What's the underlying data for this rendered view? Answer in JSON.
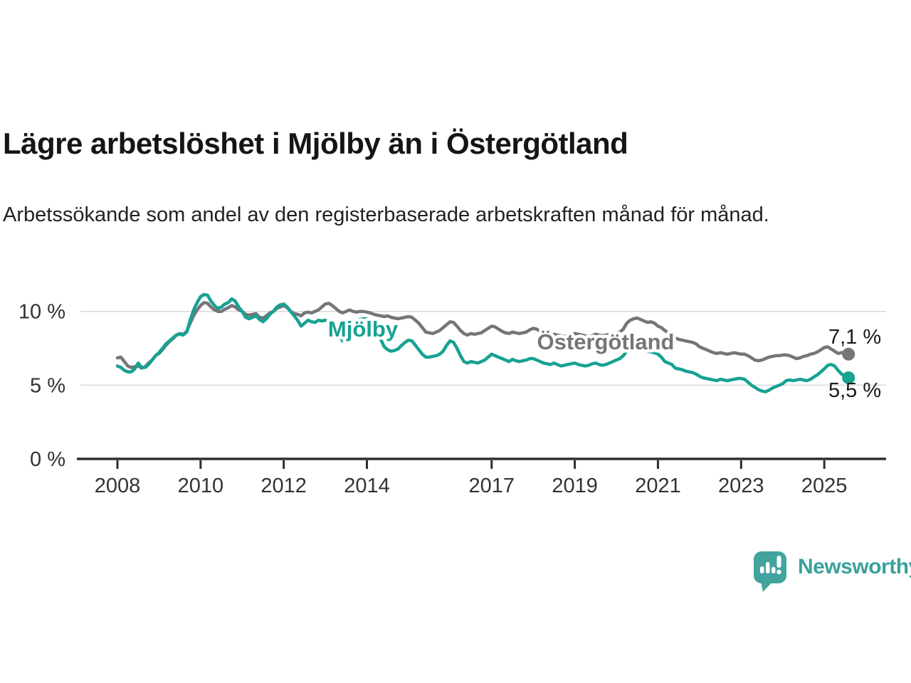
{
  "header": {
    "title": "Lägre arbetslöshet i Mjölby än i Östergötland",
    "subtitle": "Arbetssökande som andel av den registerbaserade arbetskraften månad för månad."
  },
  "chart_data": {
    "type": "line",
    "x_unit": "month",
    "x_range": [
      "2008-01",
      "2025-08"
    ],
    "x_start_year": 2008,
    "x_step_months": 1,
    "ylim": [
      0,
      11.6
    ],
    "grid": "horizontal",
    "legend_position": "inline-labels",
    "xticks": [
      2008,
      2010,
      2012,
      2014,
      2017,
      2019,
      2021,
      2023,
      2025
    ],
    "yticks": [
      {
        "value": 0,
        "label": "0 %"
      },
      {
        "value": 5,
        "label": "5 %"
      },
      {
        "value": 10,
        "label": "10 %"
      }
    ],
    "series": [
      {
        "name": "Östergötland",
        "color": "#75757a",
        "end_label": "7,1 %",
        "end_value": 7.1,
        "values": [
          6.85,
          6.9,
          6.6,
          6.3,
          6.2,
          6.25,
          6.3,
          6.15,
          6.25,
          6.5,
          6.7,
          7.0,
          7.15,
          7.4,
          7.7,
          7.95,
          8.15,
          8.4,
          8.5,
          8.45,
          8.65,
          9.2,
          9.7,
          10.1,
          10.4,
          10.6,
          10.55,
          10.3,
          10.1,
          10.0,
          10.0,
          10.15,
          10.25,
          10.4,
          10.3,
          10.1,
          10.0,
          9.8,
          9.75,
          9.8,
          9.85,
          9.6,
          9.55,
          9.7,
          9.9,
          10.0,
          10.2,
          10.3,
          10.4,
          10.25,
          10.0,
          9.85,
          9.8,
          9.7,
          9.9,
          9.95,
          9.9,
          10.0,
          10.1,
          10.3,
          10.5,
          10.55,
          10.4,
          10.2,
          10.0,
          9.9,
          10.0,
          10.1,
          10.0,
          9.95,
          10.0,
          10.0,
          9.95,
          9.9,
          9.8,
          9.75,
          9.7,
          9.65,
          9.7,
          9.6,
          9.55,
          9.5,
          9.55,
          9.6,
          9.65,
          9.6,
          9.4,
          9.2,
          8.9,
          8.6,
          8.55,
          8.5,
          8.6,
          8.7,
          8.9,
          9.1,
          9.3,
          9.25,
          9.0,
          8.7,
          8.5,
          8.4,
          8.5,
          8.45,
          8.5,
          8.55,
          8.7,
          8.85,
          9.0,
          8.95,
          8.8,
          8.65,
          8.55,
          8.5,
          8.6,
          8.55,
          8.5,
          8.55,
          8.6,
          8.75,
          8.85,
          8.8,
          8.65,
          8.5,
          8.4,
          8.35,
          8.45,
          8.4,
          8.35,
          8.3,
          8.35,
          8.4,
          8.5,
          8.45,
          8.4,
          8.35,
          8.3,
          8.35,
          8.45,
          8.4,
          8.35,
          8.4,
          8.45,
          8.5,
          8.55,
          8.6,
          8.8,
          9.2,
          9.4,
          9.5,
          9.55,
          9.45,
          9.35,
          9.25,
          9.3,
          9.2,
          9.0,
          8.9,
          8.7,
          8.55,
          8.4,
          8.2,
          8.1,
          8.05,
          8.0,
          7.95,
          7.9,
          7.8,
          7.6,
          7.5,
          7.4,
          7.3,
          7.2,
          7.15,
          7.2,
          7.15,
          7.1,
          7.15,
          7.2,
          7.15,
          7.1,
          7.1,
          7.0,
          6.85,
          6.7,
          6.65,
          6.7,
          6.8,
          6.9,
          6.95,
          7.0,
          7.0,
          7.05,
          7.05,
          7.0,
          6.9,
          6.8,
          6.85,
          6.95,
          7.0,
          7.1,
          7.15,
          7.25,
          7.4,
          7.55,
          7.6,
          7.45,
          7.3,
          7.15,
          7.2,
          7.25,
          7.1
        ]
      },
      {
        "name": "Mjölby",
        "color": "#17a292",
        "end_label": "5,5 %",
        "end_value": 5.5,
        "values": [
          6.3,
          6.2,
          6.0,
          5.9,
          5.9,
          6.1,
          6.5,
          6.2,
          6.2,
          6.4,
          6.7,
          7.0,
          7.2,
          7.5,
          7.8,
          8.0,
          8.2,
          8.4,
          8.45,
          8.4,
          8.6,
          9.4,
          10.1,
          10.6,
          11.0,
          11.15,
          11.1,
          10.7,
          10.4,
          10.2,
          10.3,
          10.5,
          10.6,
          10.85,
          10.7,
          10.3,
          10.0,
          9.6,
          9.5,
          9.6,
          9.7,
          9.45,
          9.3,
          9.5,
          9.8,
          10.0,
          10.3,
          10.45,
          10.5,
          10.3,
          10.0,
          9.7,
          9.4,
          9.0,
          9.2,
          9.4,
          9.3,
          9.25,
          9.4,
          9.35,
          9.4,
          9.3,
          9.2,
          8.9,
          8.3,
          8.0,
          8.3,
          8.8,
          9.2,
          9.4,
          9.45,
          9.5,
          9.5,
          9.3,
          8.9,
          8.4,
          8.1,
          7.6,
          7.4,
          7.3,
          7.35,
          7.45,
          7.7,
          7.9,
          8.05,
          8.0,
          7.7,
          7.4,
          7.1,
          6.9,
          6.9,
          6.95,
          7.0,
          7.1,
          7.3,
          7.7,
          8.0,
          7.9,
          7.5,
          7.0,
          6.6,
          6.5,
          6.6,
          6.55,
          6.5,
          6.6,
          6.7,
          6.9,
          7.1,
          7.0,
          6.9,
          6.8,
          6.7,
          6.6,
          6.75,
          6.65,
          6.6,
          6.65,
          6.7,
          6.8,
          6.8,
          6.7,
          6.6,
          6.5,
          6.45,
          6.4,
          6.5,
          6.4,
          6.3,
          6.35,
          6.4,
          6.45,
          6.5,
          6.4,
          6.35,
          6.3,
          6.35,
          6.45,
          6.5,
          6.4,
          6.35,
          6.4,
          6.5,
          6.6,
          6.7,
          6.8,
          7.0,
          7.3,
          7.45,
          7.5,
          7.5,
          7.45,
          7.4,
          7.3,
          7.25,
          7.2,
          7.1,
          6.9,
          6.6,
          6.5,
          6.4,
          6.15,
          6.1,
          6.05,
          5.95,
          5.9,
          5.85,
          5.75,
          5.6,
          5.5,
          5.45,
          5.4,
          5.35,
          5.3,
          5.4,
          5.35,
          5.3,
          5.35,
          5.4,
          5.45,
          5.45,
          5.4,
          5.2,
          5.0,
          4.85,
          4.7,
          4.6,
          4.55,
          4.65,
          4.8,
          4.9,
          5.0,
          5.1,
          5.3,
          5.35,
          5.3,
          5.35,
          5.4,
          5.35,
          5.3,
          5.4,
          5.55,
          5.7,
          5.9,
          6.1,
          6.35,
          6.4,
          6.3,
          6.0,
          5.75,
          5.6,
          5.5
        ]
      }
    ]
  },
  "branding": {
    "logo_text": "Newsworthy",
    "logo_color": "#38a29a",
    "logo_icon": "speech-bubble-bar-chart"
  },
  "colors": {
    "background": "#ffffff",
    "title_text": "#151515",
    "axis": "#2e2e2e",
    "gridline": "#d9d9d9",
    "value_label_text": "#1a1a1a"
  }
}
